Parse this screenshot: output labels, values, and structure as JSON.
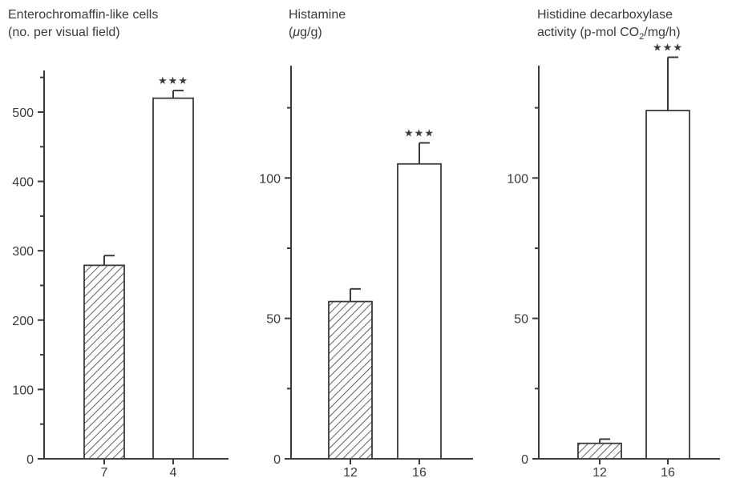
{
  "chart_data": [
    {
      "type": "bar",
      "title_line1": "Enterochromaffin-like cells",
      "title_line2": "(no. per visual field)",
      "categories": [
        "7",
        "4"
      ],
      "values": [
        279,
        520
      ],
      "errors": [
        14,
        11
      ],
      "patterns": [
        "hatched",
        "open"
      ],
      "significance": [
        "",
        "★★★"
      ],
      "ylim": [
        0,
        560
      ],
      "yticks": [
        0,
        100,
        200,
        300,
        400,
        500
      ],
      "yminor": [
        50,
        150,
        250,
        350,
        450,
        550
      ]
    },
    {
      "type": "bar",
      "title_line1": "Histamine",
      "title_line2_prefix": "μ",
      "title_line2": "g/g)",
      "title_line2_open": "(",
      "categories": [
        "12",
        "16"
      ],
      "values": [
        56,
        105
      ],
      "errors": [
        4.5,
        7.5
      ],
      "patterns": [
        "hatched",
        "open"
      ],
      "significance": [
        "",
        "★★★"
      ],
      "ylim": [
        0,
        140
      ],
      "yticks": [
        0,
        50,
        100
      ],
      "yminor": [
        25,
        75,
        125
      ]
    },
    {
      "type": "bar",
      "title_line1": "Histidine decarboxylase",
      "title_line2": "activity (p-mol CO",
      "title_line2_sub": "2",
      "title_line2_tail": "/mg/h)",
      "categories": [
        "12",
        "16"
      ],
      "values": [
        5.5,
        124
      ],
      "errors": [
        1.5,
        19
      ],
      "patterns": [
        "hatched",
        "open"
      ],
      "significance": [
        "",
        "★★★"
      ],
      "ylim": [
        0,
        140
      ],
      "yticks": [
        0,
        50,
        100
      ],
      "yminor": [
        25,
        75,
        125
      ]
    }
  ]
}
